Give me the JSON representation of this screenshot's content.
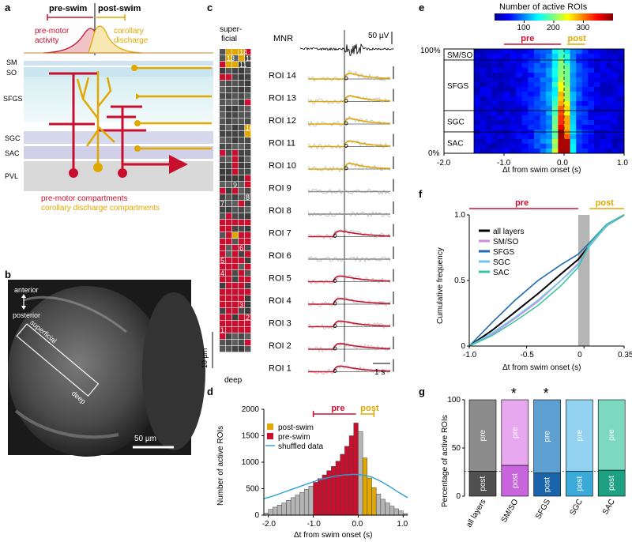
{
  "panel_labels": {
    "a": "a",
    "b": "b",
    "c": "c",
    "d": "d",
    "e": "e",
    "f": "f",
    "g": "g"
  },
  "panel_a": {
    "pre_swim": "pre-swim",
    "post_swim": "post-swim",
    "premotor_activity": [
      "pre-motor",
      "activity"
    ],
    "corollary_discharge": [
      "corollary",
      "discharge"
    ],
    "layers": [
      "SM",
      "SO",
      "SFGS",
      "SGC",
      "SAC",
      "PVL"
    ],
    "legend_premotor": "pre-motor compartments",
    "legend_corollary": "corollary discharge compartments",
    "colors": {
      "premotor": "#c8102e",
      "corollary": "#e0a800"
    }
  },
  "panel_b": {
    "anterior": "anterior",
    "posterior": "posterior",
    "superficial": "superficial",
    "deep": "deep",
    "scale": "50 µm"
  },
  "panel_c": {
    "superficial": [
      "super-",
      "ficial"
    ],
    "deep": "deep",
    "scale_um": "10 µm",
    "mnr": "MNR",
    "mnr_scale": "50 µV",
    "time_scale": "1 s",
    "roi_labels": [
      "ROI 14",
      "ROI 13",
      "ROI 12",
      "ROI 11",
      "ROI 10",
      "ROI 9",
      "ROI 8",
      "ROI 7",
      "ROI 6",
      "ROI 5",
      "ROI 4",
      "ROI 3",
      "ROI 2",
      "ROI 1"
    ],
    "roi_types": [
      "post",
      "post",
      "post",
      "post",
      "post",
      "none",
      "none",
      "pre",
      "none",
      "pre",
      "pre",
      "pre",
      "pre",
      "pre"
    ],
    "grid_numbers": [
      "14",
      "13",
      "11",
      "12",
      "10",
      "9",
      "8",
      "7",
      "6",
      "5",
      "4",
      "3",
      "2",
      "1"
    ]
  },
  "chart_data": [
    {
      "type": "bar",
      "id": "d",
      "title": "",
      "xlabel": "Δt from swim onset (s)",
      "ylabel": "Number of active ROIs",
      "xlim": [
        -2.1,
        1.1
      ],
      "ylim": [
        0,
        2000
      ],
      "xticks": [
        "-2.0",
        "-1.0",
        "0.0",
        "1.0"
      ],
      "yticks": [
        "0",
        "500",
        "1000",
        "1500",
        "2000"
      ],
      "bin_width": 0.1,
      "bin_starts": [
        -2.1,
        -2.0,
        -1.9,
        -1.8,
        -1.7,
        -1.6,
        -1.5,
        -1.4,
        -1.3,
        -1.2,
        -1.1,
        -1.0,
        -0.9,
        -0.8,
        -0.7,
        -0.6,
        -0.5,
        -0.4,
        -0.3,
        -0.2,
        -0.1,
        0.0,
        0.1,
        0.2,
        0.3,
        0.4,
        0.5,
        0.6,
        0.7,
        0.8,
        0.9,
        1.0
      ],
      "values": [
        40,
        110,
        150,
        190,
        230,
        280,
        330,
        380,
        430,
        490,
        550,
        620,
        690,
        760,
        840,
        920,
        1020,
        1150,
        1300,
        1500,
        1740,
        1580,
        1080,
        700,
        520,
        400,
        300,
        230,
        170,
        120,
        80,
        30
      ],
      "bin_class": [
        "none",
        "none",
        "none",
        "none",
        "none",
        "none",
        "none",
        "none",
        "none",
        "none",
        "none",
        "pre",
        "pre",
        "pre",
        "pre",
        "pre",
        "pre",
        "pre",
        "pre",
        "pre",
        "pre",
        "none",
        "post",
        "post",
        "post",
        "none",
        "none",
        "none",
        "none",
        "none",
        "none",
        "none"
      ],
      "shuffled": {
        "name": "shuffled data",
        "x": [
          -2.1,
          -1.9,
          -1.7,
          -1.5,
          -1.3,
          -1.1,
          -0.9,
          -0.7,
          -0.5,
          -0.3,
          -0.1,
          0.1,
          0.3,
          0.5,
          0.7,
          0.9,
          1.1
        ],
        "y": [
          310,
          360,
          420,
          480,
          540,
          600,
          660,
          700,
          740,
          760,
          770,
          760,
          720,
          640,
          540,
          430,
          330
        ]
      },
      "legend": [
        "post-swim",
        "pre-swim",
        "shuffled data"
      ],
      "pre_label": "pre",
      "post_label": "post"
    },
    {
      "type": "heatmap",
      "id": "e",
      "title": "Number of active ROIs",
      "xlabel": "Δt from swim onset (s)",
      "xlim": [
        -2.0,
        1.0
      ],
      "xticks": [
        "-2.0",
        "-1.0",
        "0.0",
        "1.0"
      ],
      "colorbar_ticks": [
        "100",
        "200",
        "300"
      ],
      "colorbar_range": [
        0,
        400
      ],
      "y_ends": [
        "100%",
        "0%"
      ],
      "layers": [
        "SM/SO",
        "SFGS",
        "SGC",
        "SAC"
      ],
      "pre_label": "pre",
      "post_label": "post"
    },
    {
      "type": "line",
      "id": "f",
      "xlabel": "Δt from swim onset (s)",
      "ylabel": "Cumulative frequency",
      "xlim": [
        -1.0,
        0.35
      ],
      "ylim": [
        0,
        1
      ],
      "xticks": [
        "-1.0",
        "-0.5",
        "0",
        "0.35"
      ],
      "yticks": [
        "0",
        "0.5",
        "1.0"
      ],
      "x": [
        -1.0,
        -0.8,
        -0.6,
        -0.4,
        -0.2,
        -0.05,
        0.05,
        0.2,
        0.35
      ],
      "series": [
        {
          "name": "all layers",
          "color": "#000000",
          "values": [
            0,
            0.12,
            0.26,
            0.4,
            0.55,
            0.66,
            0.77,
            0.92,
            1.0
          ]
        },
        {
          "name": "SM/SO",
          "color": "#d08ce0",
          "values": [
            0,
            0.09,
            0.21,
            0.34,
            0.5,
            0.63,
            0.77,
            0.93,
            1.0
          ]
        },
        {
          "name": "SFGS",
          "color": "#1f6ab0",
          "values": [
            0,
            0.18,
            0.35,
            0.5,
            0.62,
            0.7,
            0.79,
            0.93,
            1.0
          ]
        },
        {
          "name": "SGC",
          "color": "#6ec6f0",
          "values": [
            0,
            0.1,
            0.22,
            0.35,
            0.5,
            0.62,
            0.76,
            0.92,
            1.0
          ]
        },
        {
          "name": "SAC",
          "color": "#3cc4a0",
          "values": [
            0,
            0.08,
            0.19,
            0.31,
            0.46,
            0.6,
            0.78,
            0.93,
            1.0
          ]
        }
      ],
      "pre_label": "pre",
      "post_label": "post"
    },
    {
      "type": "bar",
      "id": "g",
      "ylabel": "Percentage of active ROIs",
      "ylim": [
        0,
        100
      ],
      "yticks": [
        "0",
        "50",
        "100"
      ],
      "categories": [
        "all layers",
        "SM/SO",
        "SFGS",
        "SGC",
        "SAC"
      ],
      "post_values": [
        26,
        32,
        24,
        26,
        27
      ],
      "pre_values": [
        74,
        68,
        76,
        74,
        73
      ],
      "significant": [
        false,
        true,
        true,
        false,
        false
      ],
      "star": "*",
      "pre_label": "pre",
      "post_label": "post",
      "pre_colors": [
        "#8c8c8c",
        "#e8a8f0",
        "#5fa0d2",
        "#92d2f0",
        "#7dd8c0"
      ],
      "post_colors": [
        "#505050",
        "#c864dc",
        "#1a64aa",
        "#3caad8",
        "#1ea082"
      ]
    }
  ]
}
